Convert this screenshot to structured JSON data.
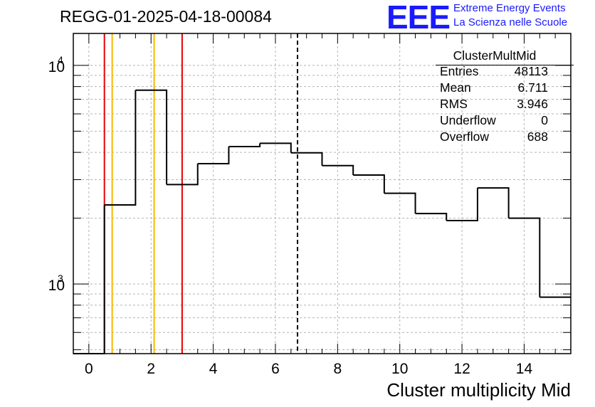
{
  "run_title": "REGG-01-2025-04-18-00084",
  "logo": {
    "mark": "EEE",
    "line1": "Extreme Energy Events",
    "line2": "La Scienza nelle Scuole"
  },
  "stats_box": {
    "title": "ClusterMultMid",
    "rows": [
      {
        "label": "Entries",
        "value": "48113"
      },
      {
        "label": "Mean",
        "value": "6.711"
      },
      {
        "label": "RMS",
        "value": "3.946"
      },
      {
        "label": "Underflow",
        "value": "0"
      },
      {
        "label": "Overflow",
        "value": "688"
      }
    ]
  },
  "colors": {
    "red_line": "#e60000",
    "orange_line": "#f5b800",
    "histogram": "#000000",
    "grid": "#b4b4b4",
    "logo": "#1a1aff"
  },
  "chart_data": {
    "type": "histogram",
    "title": "REGG-01-2025-04-18-00084",
    "xlabel": "Cluster multiplicity Mid",
    "ylabel": "",
    "xlim": [
      -0.5,
      15.5
    ],
    "ylim": [
      480,
      14000
    ],
    "yscale": "log",
    "grid": true,
    "x_ticks": [
      0,
      2,
      4,
      6,
      8,
      10,
      12,
      14
    ],
    "x_tick_labels": [
      "0",
      "2",
      "4",
      "6",
      "8",
      "10",
      "12",
      "14"
    ],
    "y_ticks": [
      {
        "value": 1000,
        "base": "10",
        "exp": "3"
      },
      {
        "value": 10000,
        "base": "10",
        "exp": "4"
      }
    ],
    "bin_edges": [
      -0.5,
      0.5,
      1.5,
      2.5,
      3.5,
      4.5,
      5.5,
      6.5,
      7.5,
      8.5,
      9.5,
      10.5,
      11.5,
      12.5,
      13.5,
      14.5,
      15.5
    ],
    "bin_values": [
      0,
      2300,
      7700,
      2850,
      3550,
      4250,
      4400,
      3980,
      3480,
      3150,
      2600,
      2100,
      1950,
      2750,
      2000,
      870
    ],
    "vertical_lines": [
      {
        "name": "red-line-1",
        "x": 0.5,
        "color": "red",
        "style": "solid"
      },
      {
        "name": "orange-line-1",
        "x": 0.75,
        "color": "orange",
        "style": "solid"
      },
      {
        "name": "orange-line-2",
        "x": 2.1,
        "color": "orange",
        "style": "solid"
      },
      {
        "name": "red-line-2",
        "x": 3.0,
        "color": "red",
        "style": "solid"
      },
      {
        "name": "mean-line",
        "x": 6.711,
        "color": "black",
        "style": "dashed"
      }
    ]
  }
}
